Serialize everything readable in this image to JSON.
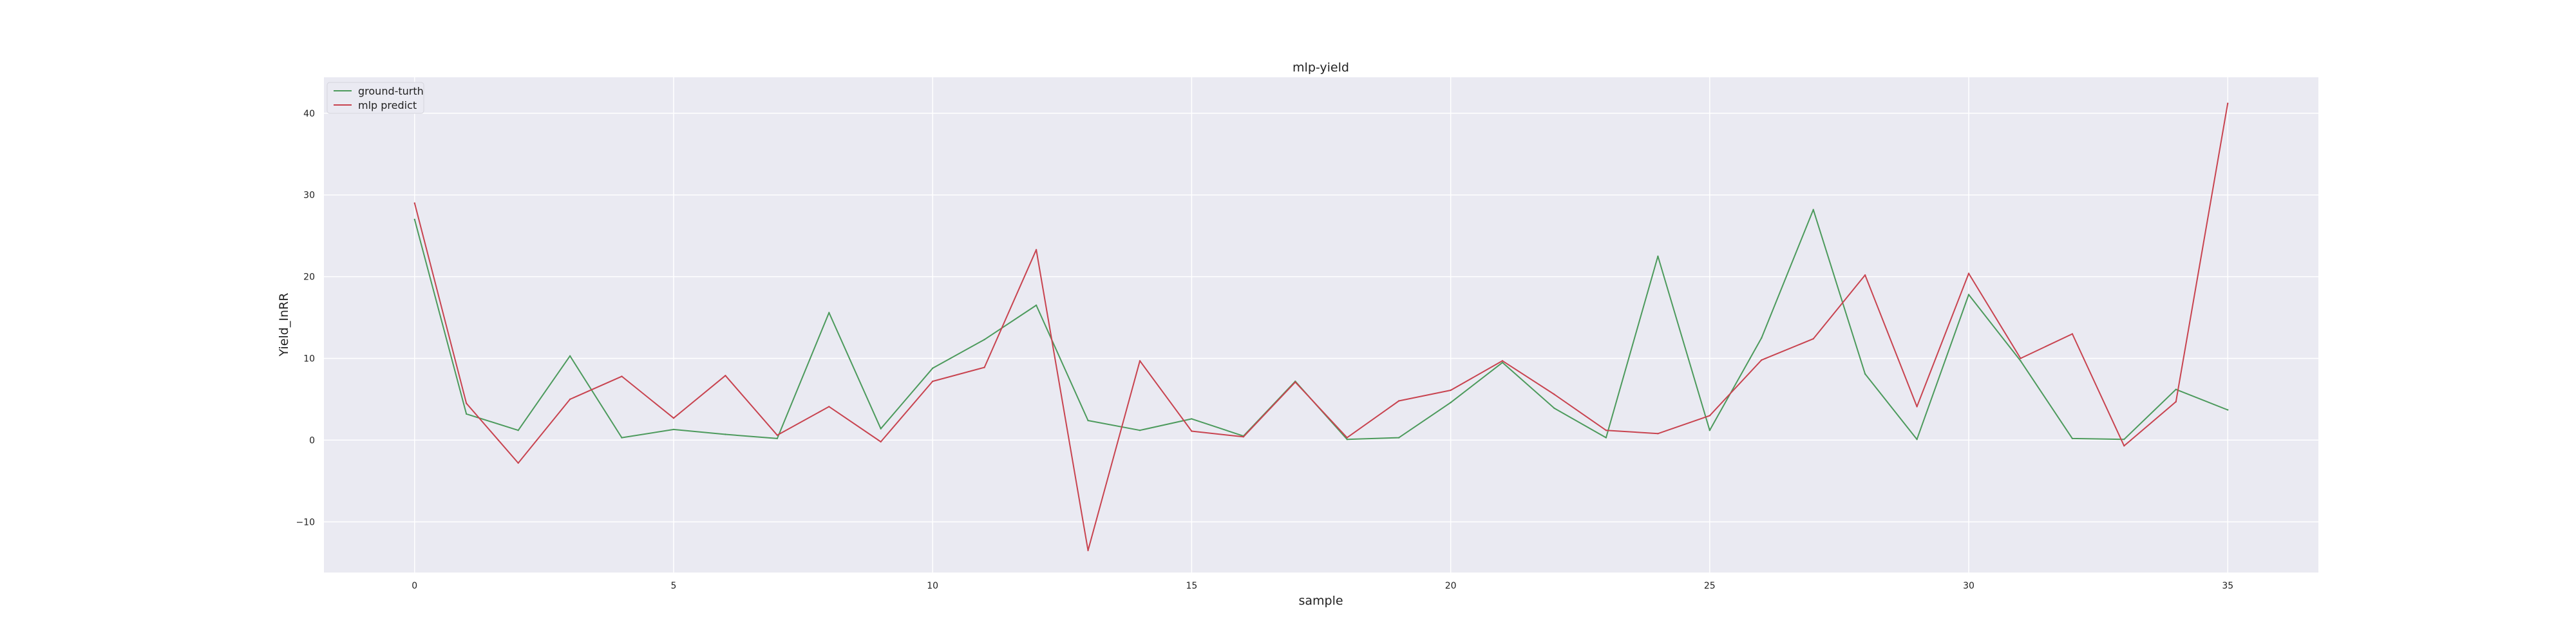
{
  "chart_data": {
    "type": "line",
    "title": "mlp-yield",
    "xlabel": "sample",
    "ylabel": "Yield_InRR",
    "xlim": [
      -1.75,
      36.75
    ],
    "ylim": [
      -16.2,
      44.4
    ],
    "x_ticks": [
      0,
      5,
      10,
      15,
      20,
      25,
      30,
      35
    ],
    "y_ticks": [
      -10,
      0,
      10,
      20,
      30,
      40
    ],
    "x_tick_labels": [
      "0",
      "5",
      "10",
      "15",
      "20",
      "25",
      "30",
      "35"
    ],
    "y_tick_labels": [
      "−10",
      "0",
      "10",
      "20",
      "30",
      "40"
    ],
    "grid": true,
    "legend_position": "top-left",
    "x": [
      0,
      1,
      2,
      3,
      4,
      5,
      6,
      7,
      8,
      9,
      10,
      11,
      12,
      13,
      14,
      15,
      16,
      17,
      18,
      19,
      20,
      21,
      22,
      23,
      24,
      25,
      26,
      27,
      28,
      29,
      30,
      31,
      32,
      33,
      34,
      35
    ],
    "series": [
      {
        "name": "ground-turth",
        "color": "#4c9a5c",
        "values": [
          27.0,
          3.2,
          1.2,
          10.3,
          0.3,
          1.3,
          0.7,
          0.2,
          15.6,
          1.4,
          8.8,
          12.3,
          16.5,
          2.4,
          1.2,
          2.6,
          0.5,
          7.2,
          0.1,
          0.3,
          4.6,
          9.5,
          3.9,
          0.3,
          22.5,
          1.2,
          12.5,
          28.2,
          8.1,
          0.1,
          17.8,
          9.7,
          0.2,
          0.1,
          6.2,
          3.7
        ]
      },
      {
        "name": "mlp predict",
        "color": "#c8434f",
        "values": [
          29.0,
          4.5,
          -2.8,
          5.0,
          7.8,
          2.7,
          7.9,
          0.6,
          4.1,
          -0.2,
          7.2,
          8.9,
          23.3,
          -13.5,
          9.7,
          1.1,
          0.4,
          7.1,
          0.3,
          4.8,
          6.1,
          9.7,
          5.6,
          1.2,
          0.8,
          3.0,
          9.8,
          12.4,
          20.2,
          4.1,
          20.4,
          10.0,
          13.0,
          -0.7,
          4.7,
          41.2
        ]
      }
    ]
  },
  "colors": {
    "plot_background": "#eaeaf2",
    "grid": "#ffffff"
  }
}
